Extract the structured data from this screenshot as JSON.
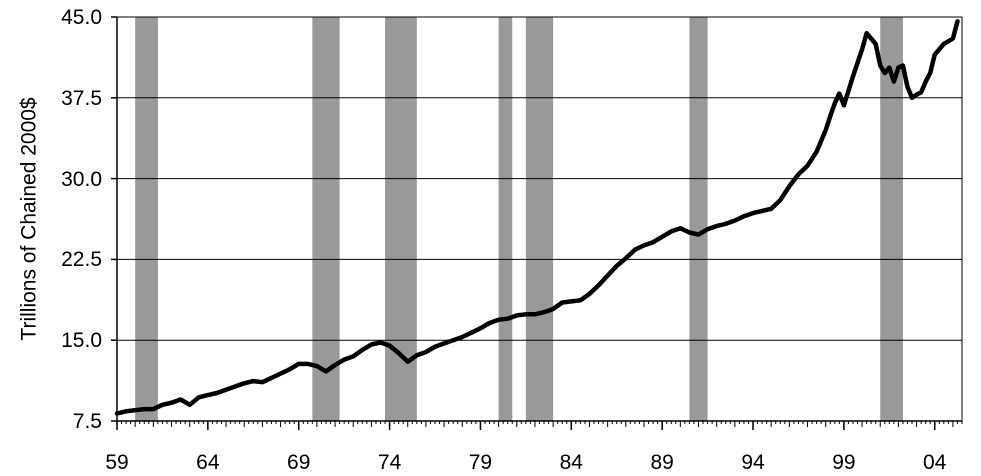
{
  "chart_data": {
    "type": "line",
    "title": "",
    "xlabel": "",
    "ylabel": "Trillions of Chained 2000$",
    "xlim": [
      1959,
      2005.5
    ],
    "ylim": [
      7.5,
      45.0
    ],
    "y_ticks": [
      7.5,
      15.0,
      22.5,
      30.0,
      37.5,
      45.0
    ],
    "y_tick_labels": [
      "7.5",
      "15.0",
      "22.5",
      "30.0",
      "37.5",
      "45.0"
    ],
    "x_ticks": [
      1959,
      1964,
      1969,
      1974,
      1979,
      1984,
      1989,
      1994,
      1999,
      2004
    ],
    "x_tick_labels": [
      "59",
      "64",
      "69",
      "74",
      "79",
      "84",
      "89",
      "94",
      "99",
      "04"
    ],
    "grid": "horizontal",
    "line_color": "#000000",
    "recession_color": "#999999",
    "recession_periods": [
      [
        1960.0,
        1961.25
      ],
      [
        1969.75,
        1971.25
      ],
      [
        1973.75,
        1975.5
      ],
      [
        1980.0,
        1980.75
      ],
      [
        1981.5,
        1983.0
      ],
      [
        1990.5,
        1991.5
      ],
      [
        2001.0,
        2002.25
      ]
    ],
    "series": [
      {
        "x": [
          1959.0,
          1959.5,
          1960.0,
          1960.5,
          1961.0,
          1961.5,
          1962.0,
          1962.5,
          1963.0,
          1963.5,
          1964.0,
          1964.5,
          1965.0,
          1965.5,
          1966.0,
          1966.5,
          1967.0,
          1967.5,
          1968.0,
          1968.5,
          1969.0,
          1969.5,
          1970.0,
          1970.5,
          1971.0,
          1971.5,
          1972.0,
          1972.5,
          1973.0,
          1973.5,
          1974.0,
          1974.5,
          1975.0,
          1975.5,
          1976.0,
          1976.5,
          1977.0,
          1977.5,
          1978.0,
          1978.5,
          1979.0,
          1979.5,
          1980.0,
          1980.5,
          1981.0,
          1981.5,
          1982.0,
          1982.5,
          1983.0,
          1983.5,
          1984.0,
          1984.5,
          1985.0,
          1985.5,
          1986.0,
          1986.5,
          1987.0,
          1987.5,
          1988.0,
          1988.5,
          1989.0,
          1989.5,
          1990.0,
          1990.5,
          1991.0,
          1991.5,
          1992.0,
          1992.5,
          1993.0,
          1993.5,
          1994.0,
          1994.5,
          1995.0,
          1995.5,
          1996.0,
          1996.5,
          1997.0,
          1997.5,
          1998.0,
          1998.25,
          1998.5,
          1998.75,
          1999.0,
          1999.5,
          2000.0,
          2000.25,
          2000.5,
          2000.75,
          2001.0,
          2001.25,
          2001.5,
          2001.75,
          2002.0,
          2002.25,
          2002.5,
          2002.75,
          2003.0,
          2003.25,
          2003.5,
          2003.75,
          2004.0,
          2004.5,
          2005.0,
          2005.25
        ],
        "values": [
          8.2,
          8.4,
          8.5,
          8.6,
          8.6,
          9.0,
          9.2,
          9.5,
          9.0,
          9.7,
          9.9,
          10.1,
          10.4,
          10.7,
          11.0,
          11.2,
          11.1,
          11.5,
          11.9,
          12.3,
          12.8,
          12.8,
          12.6,
          12.1,
          12.7,
          13.2,
          13.5,
          14.1,
          14.6,
          14.8,
          14.5,
          13.8,
          13.0,
          13.6,
          13.9,
          14.4,
          14.7,
          15.0,
          15.3,
          15.7,
          16.1,
          16.6,
          16.9,
          17.0,
          17.3,
          17.4,
          17.4,
          17.6,
          17.9,
          18.5,
          18.6,
          18.7,
          19.3,
          20.1,
          21.0,
          21.9,
          22.6,
          23.4,
          23.8,
          24.1,
          24.6,
          25.1,
          25.4,
          25.0,
          24.8,
          25.3,
          25.6,
          25.8,
          26.1,
          26.5,
          26.8,
          27.0,
          27.2,
          28.0,
          29.3,
          30.4,
          31.2,
          32.5,
          34.5,
          35.8,
          37.0,
          37.9,
          36.8,
          39.5,
          42.0,
          43.5,
          43.0,
          42.5,
          40.5,
          39.8,
          40.3,
          39.0,
          40.3,
          40.5,
          38.5,
          37.5,
          37.8,
          38.0,
          39.0,
          39.8,
          41.5,
          42.5,
          43.0,
          44.6
        ]
      }
    ]
  }
}
